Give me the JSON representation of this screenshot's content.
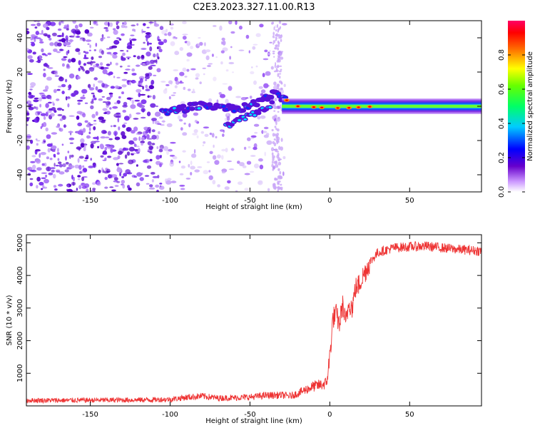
{
  "title": "C2E3.2023.327.11.00.R13",
  "chart_data": [
    {
      "type": "heatmap",
      "title": "C2E3.2023.327.11.00.R13",
      "xlabel": "Height of straight line (km)",
      "ylabel": "Frequency (Hz)",
      "xlim": [
        -190,
        95
      ],
      "ylim": [
        -50,
        50
      ],
      "x_ticks": [
        -150,
        -100,
        -50,
        0,
        50
      ],
      "y_ticks": [
        -40,
        -20,
        0,
        20,
        40
      ],
      "colorbar": {
        "label": "Normalized spectral amplitude",
        "range": [
          0.0,
          1.0
        ],
        "ticks": [
          0.0,
          0.2,
          0.4,
          0.6,
          0.8
        ]
      },
      "ridge": [
        {
          "x": -105,
          "y": -4
        },
        {
          "x": -90,
          "y": -1
        },
        {
          "x": -75,
          "y": 1
        },
        {
          "x": -60,
          "y": -2
        },
        {
          "x": -45,
          "y": 2
        },
        {
          "x": -35,
          "y": 7
        },
        {
          "x": -28,
          "y": 4
        },
        {
          "x": -20,
          "y": 0
        },
        {
          "x": 0,
          "y": -1
        },
        {
          "x": 10,
          "y": -1
        },
        {
          "x": 30,
          "y": 0
        },
        {
          "x": 60,
          "y": 0
        },
        {
          "x": 95,
          "y": -1
        }
      ]
    },
    {
      "type": "line",
      "xlabel": "Height of straight line (km)",
      "ylabel": "SNR (10 * v/v)",
      "xlim": [
        -190,
        95
      ],
      "ylim": [
        0,
        5250
      ],
      "x_ticks": [
        -150,
        -100,
        -50,
        0,
        50
      ],
      "y_ticks": [
        1000,
        2000,
        3000,
        4000,
        5000
      ],
      "color": "#ee3333",
      "series": [
        {
          "x": [
            -190,
            -170,
            -150,
            -130,
            -110,
            -100,
            -90,
            -80,
            -70,
            -60,
            -50,
            -40,
            -30,
            -25,
            -20,
            -15,
            -10,
            -5,
            -2,
            0,
            2,
            4,
            6,
            8,
            10,
            12,
            14,
            16,
            18,
            20,
            25,
            30,
            40,
            50,
            60,
            70,
            80,
            95
          ],
          "y": [
            170,
            170,
            175,
            180,
            190,
            200,
            260,
            300,
            240,
            250,
            270,
            320,
            330,
            300,
            380,
            500,
            600,
            650,
            700,
            1500,
            2700,
            2800,
            2500,
            3100,
            2500,
            3200,
            3000,
            3600,
            3700,
            3900,
            4400,
            4700,
            4850,
            4880,
            4900,
            4850,
            4800,
            4750
          ]
        }
      ]
    }
  ]
}
